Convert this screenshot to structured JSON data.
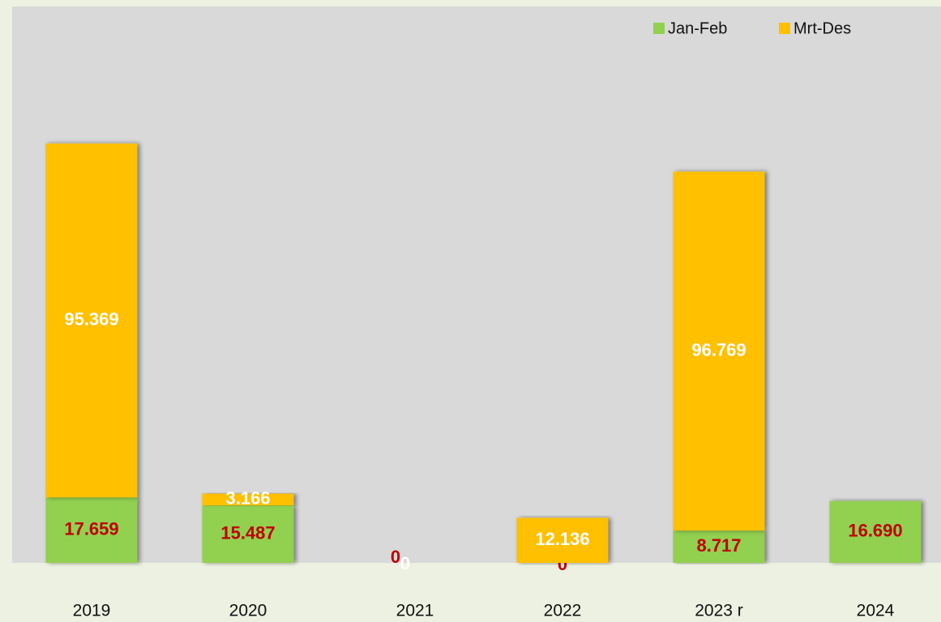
{
  "chart_data": {
    "type": "bar",
    "stacked": true,
    "categories": [
      "2019",
      "2020",
      "2021",
      "2022",
      "2023 r",
      "2024"
    ],
    "series": [
      {
        "name": "Jan-Feb",
        "color": "#92d050",
        "label_color": "#c00000",
        "values": [
          17659,
          15487,
          0,
          0,
          8717,
          16690
        ],
        "value_labels": [
          "17.659",
          "15.487",
          "0",
          "0",
          "8.717",
          "16.690"
        ]
      },
      {
        "name": "Mrt-Des",
        "color": "#ffc000",
        "label_color": "#ffffff",
        "values": [
          95369,
          3166,
          0,
          12136,
          96769,
          null
        ],
        "value_labels": [
          "95.369",
          "3.166",
          "0",
          "12.136",
          "96.769",
          null
        ]
      }
    ],
    "ylim": [
      0,
      150000
    ],
    "legend": "top-right"
  }
}
